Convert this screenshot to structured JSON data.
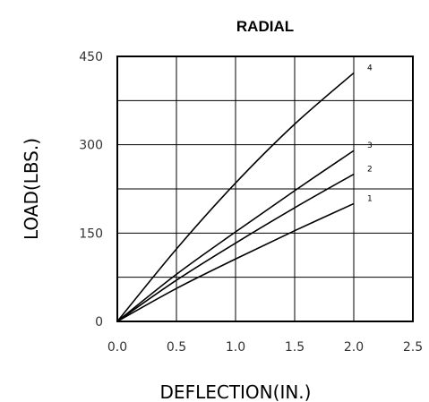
{
  "chart_data": {
    "type": "line",
    "title": "RADIAL",
    "xlabel": "DEFLECTION(IN.)",
    "ylabel": "LOAD(LBS.)",
    "xlim": [
      0,
      2.5
    ],
    "ylim": [
      0,
      450
    ],
    "x_ticks": [
      "0.0",
      "0.5",
      "1.0",
      "1.5",
      "2.0",
      "2.5"
    ],
    "y_ticks": [
      "0",
      "150",
      "300",
      "450"
    ],
    "x_gridlines": [
      0.5,
      1.0,
      1.5,
      2.0
    ],
    "y_gridlines": [
      75,
      150,
      225,
      300,
      375
    ],
    "grid": true,
    "series": [
      {
        "name": "1",
        "x": [
          0,
          0.5,
          1.0,
          1.5,
          2.0
        ],
        "y": [
          0,
          56,
          106,
          154,
          200
        ]
      },
      {
        "name": "2",
        "x": [
          0,
          0.5,
          1.0,
          1.5,
          2.0
        ],
        "y": [
          0,
          70,
          133,
          193,
          250
        ]
      },
      {
        "name": "3",
        "x": [
          0,
          0.5,
          1.0,
          1.5,
          2.0
        ],
        "y": [
          0,
          80,
          152,
          222,
          290
        ]
      },
      {
        "name": "4",
        "x": [
          0,
          0.5,
          1.0,
          1.5,
          2.0
        ],
        "y": [
          0,
          123,
          235,
          335,
          422
        ]
      }
    ]
  }
}
